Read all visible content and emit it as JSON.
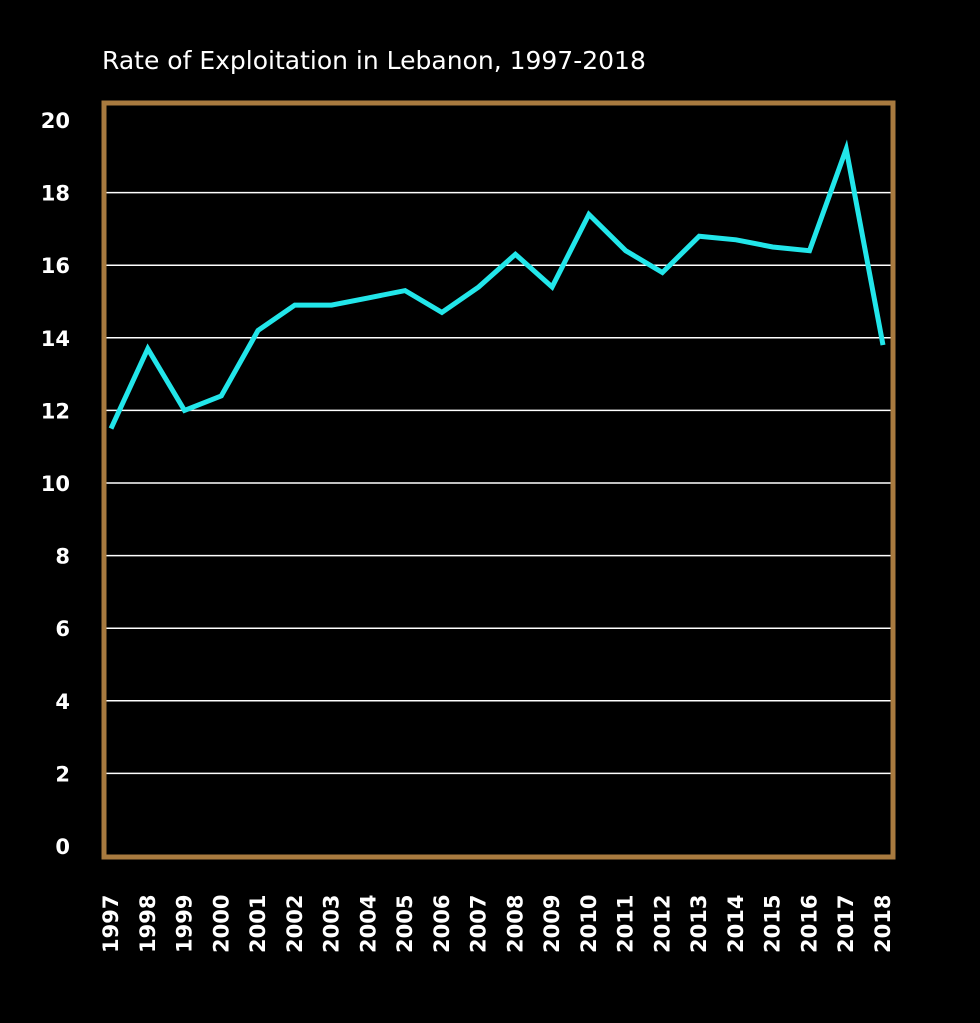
{
  "chart_data": {
    "type": "line",
    "title": "Rate of Exploitation in Lebanon, 1997-2018",
    "xlabel": "",
    "ylabel": "",
    "ylim": [
      0,
      20
    ],
    "y_ticks": [
      "0",
      "2",
      "4",
      "6",
      "8",
      "10",
      "12",
      "14",
      "16",
      "18",
      "20"
    ],
    "grid": true,
    "categories": [
      "1997",
      "1998",
      "1999",
      "2000",
      "2001",
      "2002",
      "2003",
      "2004",
      "2005",
      "2006",
      "2007",
      "2008",
      "2009",
      "2010",
      "2011",
      "2012",
      "2013",
      "2014",
      "2015",
      "2016",
      "2017",
      "2018"
    ],
    "series": [
      {
        "values": [
          11.5,
          13.7,
          12.0,
          12.4,
          14.2,
          14.9,
          14.9,
          15.1,
          15.3,
          14.7,
          15.4,
          16.3,
          15.4,
          17.4,
          16.4,
          15.8,
          16.8,
          16.7,
          16.5,
          16.4,
          19.2,
          13.8
        ]
      }
    ],
    "colors": {
      "background": "#000000",
      "frame": "#a87a3f",
      "grid": "#ffffff",
      "line": "#22e6ea",
      "text": "#ffffff"
    }
  }
}
